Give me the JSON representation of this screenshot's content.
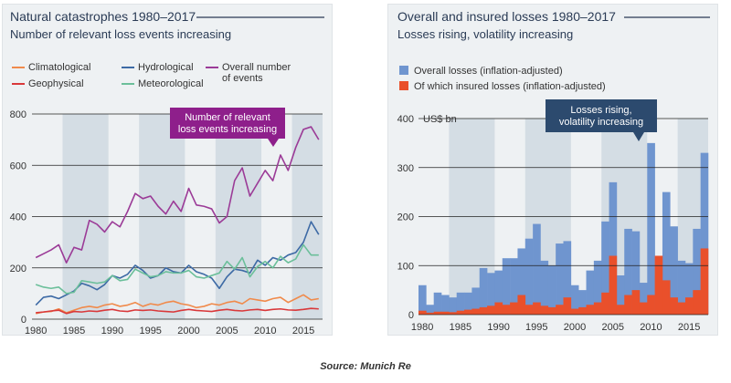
{
  "footer": {
    "source": "Source: Munich Re"
  },
  "chart_data": [
    {
      "type": "line",
      "title": "Natural catastrophes 1980–2017",
      "subtitle": "Number of relevant loss events increasing",
      "annotation": "Number of relevant\nloss events increasing",
      "annotation_color": "#8e1f8b",
      "ylim": [
        0,
        800
      ],
      "yticks": [
        0,
        200,
        400,
        600,
        800
      ],
      "xticks": [
        1980,
        1985,
        1990,
        1995,
        2000,
        2005,
        2010,
        2015
      ],
      "x": [
        1980,
        1981,
        1982,
        1983,
        1984,
        1985,
        1986,
        1987,
        1988,
        1989,
        1990,
        1991,
        1992,
        1993,
        1994,
        1995,
        1996,
        1997,
        1998,
        1999,
        2000,
        2001,
        2002,
        2003,
        2004,
        2005,
        2006,
        2007,
        2008,
        2009,
        2010,
        2011,
        2012,
        2013,
        2014,
        2015,
        2016,
        2017
      ],
      "legend": [
        {
          "name": "Climatological",
          "color": "#f08a4b"
        },
        {
          "name": "Hydrological",
          "color": "#3d6aa5"
        },
        {
          "name": "Overall number\nof events",
          "color": "#9b3b97"
        },
        {
          "name": "Geophysical",
          "color": "#d9383a"
        },
        {
          "name": "Meteorological",
          "color": "#6bbf9a"
        }
      ],
      "series": [
        {
          "key": "Climatological",
          "color": "#f08a4b",
          "values": [
            22,
            28,
            30,
            40,
            25,
            35,
            45,
            50,
            45,
            55,
            60,
            50,
            55,
            65,
            50,
            60,
            55,
            65,
            70,
            60,
            55,
            45,
            50,
            60,
            55,
            65,
            70,
            60,
            80,
            75,
            70,
            80,
            85,
            65,
            80,
            95,
            75,
            80
          ]
        },
        {
          "key": "Hydrological",
          "color": "#3d6aa5",
          "values": [
            55,
            85,
            90,
            80,
            95,
            110,
            140,
            130,
            115,
            135,
            170,
            160,
            175,
            210,
            190,
            160,
            170,
            200,
            185,
            180,
            210,
            185,
            175,
            160,
            120,
            165,
            195,
            190,
            180,
            230,
            210,
            240,
            230,
            250,
            260,
            300,
            380,
            330
          ]
        },
        {
          "key": "Overall number\nof events",
          "color": "#9b3b97",
          "values": [
            240,
            255,
            270,
            290,
            220,
            280,
            270,
            385,
            370,
            340,
            380,
            360,
            420,
            490,
            470,
            480,
            440,
            410,
            460,
            420,
            510,
            445,
            440,
            430,
            375,
            400,
            540,
            590,
            480,
            530,
            580,
            540,
            640,
            580,
            670,
            740,
            750,
            700
          ]
        },
        {
          "key": "Geophysical",
          "color": "#d9383a",
          "values": [
            25,
            28,
            32,
            35,
            22,
            30,
            28,
            32,
            30,
            35,
            38,
            32,
            30,
            36,
            34,
            36,
            32,
            30,
            28,
            34,
            38,
            34,
            32,
            30,
            35,
            38,
            34,
            32,
            36,
            38,
            34,
            38,
            40,
            36,
            35,
            38,
            42,
            40
          ]
        },
        {
          "key": "Meteorological",
          "color": "#6bbf9a",
          "values": [
            135,
            125,
            120,
            125,
            100,
            105,
            150,
            145,
            140,
            145,
            170,
            150,
            155,
            195,
            180,
            165,
            170,
            185,
            180,
            180,
            190,
            165,
            160,
            170,
            180,
            225,
            195,
            240,
            165,
            205,
            225,
            200,
            245,
            220,
            235,
            290,
            250,
            250
          ]
        }
      ],
      "highlight_periods": [
        [
          1984,
          1989
        ],
        [
          1994,
          1999
        ],
        [
          2004,
          2009
        ],
        [
          2014,
          2017
        ]
      ]
    },
    {
      "type": "bar",
      "title": "Overall and insured losses 1980–2017",
      "subtitle": "Losses rising, volatility increasing",
      "annotation": "Losses rising,\nvolatility increasing",
      "annotation_color": "#2c4a6e",
      "ylabel": "US$ bn",
      "ylim": [
        0,
        400
      ],
      "yticks": [
        0,
        100,
        200,
        300,
        400
      ],
      "xticks": [
        1980,
        1985,
        1990,
        1995,
        2000,
        2005,
        2010,
        2015
      ],
      "x": [
        1980,
        1981,
        1982,
        1983,
        1984,
        1985,
        1986,
        1987,
        1988,
        1989,
        1990,
        1991,
        1992,
        1993,
        1994,
        1995,
        1996,
        1997,
        1998,
        1999,
        2000,
        2001,
        2002,
        2003,
        2004,
        2005,
        2006,
        2007,
        2008,
        2009,
        2010,
        2011,
        2012,
        2013,
        2014,
        2015,
        2016,
        2017
      ],
      "series": [
        {
          "name": "Overall losses (inflation-adjusted)",
          "color": "#6f95cf",
          "values": [
            60,
            20,
            45,
            40,
            35,
            45,
            45,
            55,
            95,
            85,
            90,
            115,
            115,
            135,
            155,
            185,
            110,
            100,
            145,
            150,
            60,
            50,
            90,
            110,
            190,
            270,
            80,
            175,
            170,
            65,
            350,
            80,
            250,
            180,
            110,
            105,
            175,
            330
          ]
        },
        {
          "name": "Of which insured losses (inflation-adjusted)",
          "color": "#e9502b",
          "values": [
            8,
            4,
            6,
            6,
            5,
            8,
            10,
            12,
            15,
            18,
            25,
            20,
            25,
            40,
            20,
            25,
            18,
            15,
            20,
            35,
            12,
            15,
            20,
            25,
            45,
            120,
            20,
            40,
            50,
            25,
            40,
            120,
            70,
            35,
            25,
            35,
            50,
            135
          ]
        }
      ],
      "highlight_periods": [
        [
          1984,
          1989
        ],
        [
          1994,
          1999
        ],
        [
          2004,
          2009
        ],
        [
          2014,
          2017
        ]
      ]
    }
  ]
}
